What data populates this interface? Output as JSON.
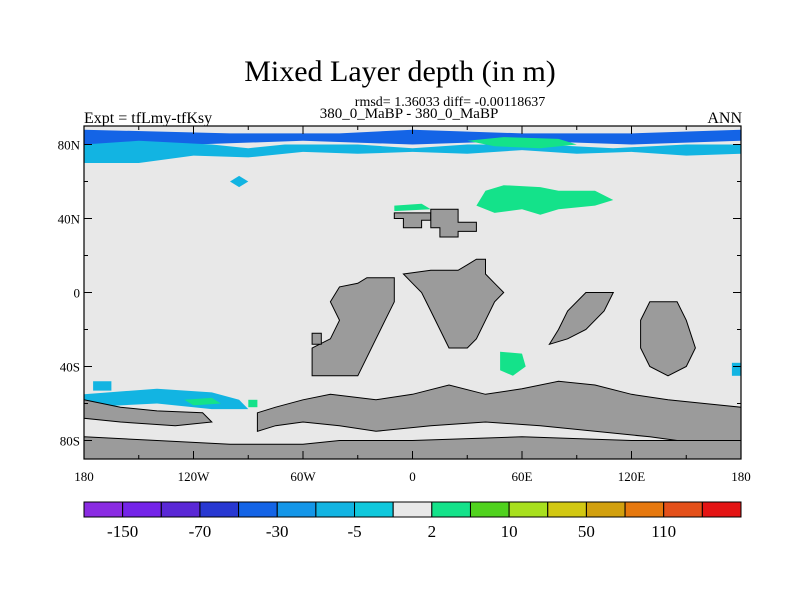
{
  "title": "Mixed Layer depth (in m)",
  "stats_line": "rmsd= 1.36033 diff= -0.00118637",
  "subtitle": "380_0_MaBP - 380_0_MaBP",
  "left_label": "Expt = tfLmy-tfKsy",
  "right_label": "ANN",
  "colors": {
    "land": "#9b9b9b",
    "ocean_neutral": "#e8e8e8",
    "outline": "#000000"
  },
  "chart_data": {
    "type": "heatmap",
    "projection": "cylindrical-equidistant",
    "xlim": [
      -180,
      180
    ],
    "ylim": [
      -90,
      90
    ],
    "x_ticks": [
      {
        "value": -180,
        "label": "180"
      },
      {
        "value": -120,
        "label": "120W"
      },
      {
        "value": -60,
        "label": "60W"
      },
      {
        "value": 0,
        "label": "0"
      },
      {
        "value": 60,
        "label": "60E"
      },
      {
        "value": 120,
        "label": "120E"
      },
      {
        "value": 180,
        "label": "180"
      }
    ],
    "y_ticks": [
      {
        "value": 80,
        "label": "80N"
      },
      {
        "value": 40,
        "label": "40N"
      },
      {
        "value": 0,
        "label": "0"
      },
      {
        "value": -40,
        "label": "40S"
      },
      {
        "value": -80,
        "label": "80S"
      }
    ],
    "colorbar": {
      "orientation": "horizontal",
      "colors": [
        "#8a2be2",
        "#7424e8",
        "#5a28d6",
        "#2838d2",
        "#1464e6",
        "#1496e8",
        "#12b4e2",
        "#10c8dc",
        "#e8e8e8",
        "#14e28a",
        "#50d21e",
        "#a8e01e",
        "#d2c812",
        "#d2a00e",
        "#e6780e",
        "#e4501a",
        "#e41414"
      ],
      "labels": [
        {
          "index": 1,
          "text": "-150"
        },
        {
          "index": 3,
          "text": "-70"
        },
        {
          "index": 5,
          "text": "-30"
        },
        {
          "index": 7,
          "text": "-5"
        },
        {
          "index": 9,
          "text": "2"
        },
        {
          "index": 11,
          "text": "10"
        },
        {
          "index": 13,
          "text": "50"
        },
        {
          "index": 15,
          "text": "110"
        }
      ]
    },
    "land_polygons": [
      [
        [
          -10,
          43
        ],
        [
          10,
          43
        ],
        [
          10,
          39
        ],
        [
          5,
          39
        ],
        [
          5,
          35
        ],
        [
          -5,
          35
        ],
        [
          -5,
          40
        ],
        [
          -10,
          40
        ]
      ],
      [
        [
          10,
          45
        ],
        [
          25,
          45
        ],
        [
          25,
          38
        ],
        [
          35,
          38
        ],
        [
          35,
          33
        ],
        [
          25,
          33
        ],
        [
          25,
          30
        ],
        [
          15,
          30
        ],
        [
          15,
          35
        ],
        [
          10,
          35
        ]
      ],
      [
        [
          -25,
          8
        ],
        [
          -10,
          8
        ],
        [
          -10,
          -5
        ],
        [
          -15,
          -15
        ],
        [
          -20,
          -25
        ],
        [
          -25,
          -35
        ],
        [
          -30,
          -45
        ],
        [
          -55,
          -45
        ],
        [
          -55,
          -30
        ],
        [
          -45,
          -25
        ],
        [
          -40,
          -15
        ],
        [
          -45,
          -5
        ],
        [
          -40,
          3
        ],
        [
          -30,
          5
        ]
      ],
      [
        [
          -55,
          -22
        ],
        [
          -50,
          -22
        ],
        [
          -50,
          -28
        ],
        [
          -55,
          -28
        ]
      ],
      [
        [
          35,
          18
        ],
        [
          40,
          18
        ],
        [
          40,
          10
        ],
        [
          45,
          5
        ],
        [
          50,
          0
        ],
        [
          45,
          -5
        ],
        [
          40,
          -15
        ],
        [
          35,
          -25
        ],
        [
          30,
          -30
        ],
        [
          20,
          -30
        ],
        [
          15,
          -20
        ],
        [
          10,
          -10
        ],
        [
          5,
          0
        ],
        [
          0,
          5
        ],
        [
          -5,
          10
        ],
        [
          10,
          12
        ],
        [
          25,
          12
        ],
        [
          30,
          15
        ]
      ],
      [
        [
          75,
          -28
        ],
        [
          80,
          -20
        ],
        [
          85,
          -10
        ],
        [
          95,
          0
        ],
        [
          110,
          0
        ],
        [
          105,
          -10
        ],
        [
          95,
          -20
        ],
        [
          85,
          -25
        ]
      ],
      [
        [
          130,
          -5
        ],
        [
          145,
          -5
        ],
        [
          150,
          -15
        ],
        [
          155,
          -30
        ],
        [
          150,
          -40
        ],
        [
          140,
          -45
        ],
        [
          130,
          -40
        ],
        [
          125,
          -30
        ],
        [
          125,
          -15
        ]
      ],
      [
        [
          -85,
          -65
        ],
        [
          -75,
          -62
        ],
        [
          -60,
          -58
        ],
        [
          -45,
          -55
        ],
        [
          -20,
          -58
        ],
        [
          0,
          -55
        ],
        [
          20,
          -50
        ],
        [
          40,
          -55
        ],
        [
          60,
          -52
        ],
        [
          80,
          -48
        ],
        [
          100,
          -50
        ],
        [
          120,
          -55
        ],
        [
          140,
          -58
        ],
        [
          160,
          -60
        ],
        [
          180,
          -62
        ],
        [
          180,
          -80
        ],
        [
          160,
          -82
        ],
        [
          130,
          -78
        ],
        [
          100,
          -75
        ],
        [
          70,
          -72
        ],
        [
          40,
          -70
        ],
        [
          10,
          -72
        ],
        [
          -20,
          -75
        ],
        [
          -40,
          -72
        ],
        [
          -60,
          -70
        ],
        [
          -75,
          -72
        ],
        [
          -85,
          -75
        ]
      ],
      [
        [
          -180,
          -58
        ],
        [
          -160,
          -62
        ],
        [
          -140,
          -64
        ],
        [
          -115,
          -65
        ],
        [
          -110,
          -70
        ],
        [
          -130,
          -72
        ],
        [
          -160,
          -70
        ],
        [
          -180,
          -68
        ]
      ],
      [
        [
          -180,
          -78
        ],
        [
          -140,
          -80
        ],
        [
          -100,
          -82
        ],
        [
          -60,
          -82
        ],
        [
          -40,
          -80
        ],
        [
          0,
          -80
        ],
        [
          60,
          -78
        ],
        [
          120,
          -80
        ],
        [
          180,
          -80
        ],
        [
          180,
          -90
        ],
        [
          -180,
          -90
        ]
      ]
    ],
    "anomaly_regions": [
      {
        "level": "-70",
        "color": "#1464e6",
        "points": [
          [
            -180,
            88
          ],
          [
            -100,
            86
          ],
          [
            -40,
            86
          ],
          [
            0,
            88
          ],
          [
            60,
            86
          ],
          [
            120,
            86
          ],
          [
            180,
            88
          ],
          [
            180,
            82
          ],
          [
            120,
            80
          ],
          [
            60,
            82
          ],
          [
            0,
            80
          ],
          [
            -60,
            82
          ],
          [
            -120,
            80
          ],
          [
            -180,
            80
          ]
        ]
      },
      {
        "level": "-5",
        "color": "#12b4e2",
        "points": [
          [
            -180,
            80
          ],
          [
            -150,
            82
          ],
          [
            -110,
            80
          ],
          [
            -90,
            78
          ],
          [
            -70,
            80
          ],
          [
            -30,
            80
          ],
          [
            0,
            78
          ],
          [
            30,
            80
          ],
          [
            70,
            80
          ],
          [
            110,
            78
          ],
          [
            150,
            80
          ],
          [
            180,
            80
          ],
          [
            180,
            75
          ],
          [
            150,
            74
          ],
          [
            120,
            76
          ],
          [
            90,
            75
          ],
          [
            60,
            77
          ],
          [
            30,
            75
          ],
          [
            0,
            76
          ],
          [
            -30,
            75
          ],
          [
            -60,
            76
          ],
          [
            -90,
            73
          ],
          [
            -120,
            74
          ],
          [
            -150,
            70
          ],
          [
            -180,
            70
          ]
        ]
      },
      {
        "level": "10",
        "color": "#14e28a",
        "points": [
          [
            30,
            82
          ],
          [
            50,
            84
          ],
          [
            80,
            83
          ],
          [
            90,
            80
          ],
          [
            70,
            78
          ],
          [
            45,
            79
          ]
        ]
      },
      {
        "level": "10",
        "color": "#14e28a",
        "points": [
          [
            40,
            55
          ],
          [
            50,
            58
          ],
          [
            70,
            57
          ],
          [
            80,
            55
          ],
          [
            100,
            55
          ],
          [
            110,
            50
          ],
          [
            100,
            47
          ],
          [
            80,
            45
          ],
          [
            70,
            42
          ],
          [
            60,
            45
          ],
          [
            45,
            43
          ],
          [
            35,
            47
          ]
        ]
      },
      {
        "level": "-5",
        "color": "#12b4e2",
        "points": [
          [
            -100,
            60
          ],
          [
            -95,
            63
          ],
          [
            -90,
            60
          ],
          [
            -95,
            57
          ]
        ]
      },
      {
        "level": "10",
        "color": "#14e28a",
        "points": [
          [
            -10,
            47
          ],
          [
            5,
            48
          ],
          [
            10,
            45
          ],
          [
            -10,
            44
          ]
        ]
      },
      {
        "level": "-5",
        "color": "#12b4e2",
        "points": [
          [
            -175,
            -48
          ],
          [
            -165,
            -48
          ],
          [
            -165,
            -53
          ],
          [
            -175,
            -53
          ]
        ]
      },
      {
        "level": "10",
        "color": "#14e28a",
        "points": [
          [
            48,
            -32
          ],
          [
            60,
            -33
          ],
          [
            62,
            -40
          ],
          [
            55,
            -45
          ],
          [
            48,
            -42
          ]
        ]
      },
      {
        "level": "-5",
        "color": "#12b4e2",
        "points": [
          [
            -180,
            -55
          ],
          [
            -140,
            -52
          ],
          [
            -110,
            -54
          ],
          [
            -95,
            -58
          ],
          [
            -90,
            -63
          ],
          [
            -110,
            -63
          ],
          [
            -140,
            -60
          ],
          [
            -180,
            -62
          ]
        ]
      },
      {
        "level": "10",
        "color": "#14e28a",
        "points": [
          [
            -125,
            -58
          ],
          [
            -110,
            -57
          ],
          [
            -105,
            -60
          ],
          [
            -120,
            -61
          ]
        ]
      },
      {
        "level": "-5",
        "color": "#12b4e2",
        "points": [
          [
            175,
            -38
          ],
          [
            180,
            -38
          ],
          [
            180,
            -45
          ],
          [
            175,
            -45
          ]
        ]
      },
      {
        "level": "10",
        "color": "#14e28a",
        "points": [
          [
            -90,
            -58
          ],
          [
            -85,
            -58
          ],
          [
            -85,
            -62
          ],
          [
            -90,
            -62
          ]
        ]
      }
    ]
  }
}
